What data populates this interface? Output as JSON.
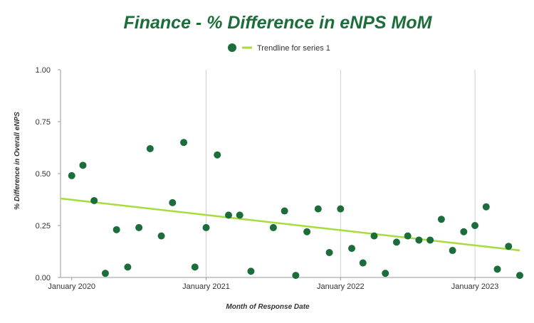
{
  "chart_data": {
    "type": "scatter",
    "title": "Finance - % Difference in eNPS MoM",
    "xlabel": "Month of Response Date",
    "ylabel": "% Difference in Overall eNPS",
    "xlim": [
      "2019-12",
      "2023-05"
    ],
    "ylim": [
      0,
      1
    ],
    "y_ticks": [
      "0.00",
      "0.25",
      "0.50",
      "0.75",
      "1.00"
    ],
    "x_ticks": [
      {
        "date": "2020-01",
        "label": "January 2020"
      },
      {
        "date": "2021-01",
        "label": "January 2021"
      },
      {
        "date": "2022-01",
        "label": "January 2022"
      },
      {
        "date": "2023-01",
        "label": "January 2023"
      }
    ],
    "grid": "vertical",
    "legend": {
      "position": "top",
      "marker_label": "",
      "trend_label": "Trendline for series 1"
    },
    "colors": {
      "title": "#1b6e3a",
      "points": "#1b6e3a",
      "trendline": "#a6dc3c",
      "grid": "#cfcfcf",
      "axis": "#999999"
    },
    "series": [
      {
        "x": [
          "2020-01",
          "2020-02",
          "2020-03",
          "2020-04",
          "2020-05",
          "2020-06",
          "2020-07",
          "2020-08",
          "2020-09",
          "2020-10",
          "2020-11",
          "2020-12",
          "2021-01",
          "2021-02",
          "2021-03",
          "2021-04",
          "2021-05",
          "2021-07",
          "2021-08",
          "2021-09",
          "2021-10",
          "2021-11",
          "2021-12",
          "2022-01",
          "2022-02",
          "2022-03",
          "2022-04",
          "2022-05",
          "2022-06",
          "2022-07",
          "2022-08",
          "2022-09",
          "2022-10",
          "2022-11",
          "2022-12",
          "2023-01",
          "2023-02",
          "2023-03",
          "2023-04",
          "2023-05"
        ],
        "y": [
          0.49,
          0.54,
          0.37,
          0.02,
          0.23,
          0.05,
          0.24,
          0.62,
          0.2,
          0.36,
          0.65,
          0.05,
          0.24,
          0.59,
          0.3,
          0.3,
          0.03,
          0.24,
          0.32,
          0.01,
          0.22,
          0.33,
          0.12,
          0.33,
          0.14,
          0.07,
          0.2,
          0.02,
          0.17,
          0.2,
          0.18,
          0.18,
          0.28,
          0.13,
          0.22,
          0.25,
          0.34,
          0.04,
          0.15,
          0.01
        ]
      }
    ],
    "trendline": {
      "x": [
        "2019-12",
        "2023-05"
      ],
      "y": [
        0.38,
        0.13
      ]
    }
  }
}
